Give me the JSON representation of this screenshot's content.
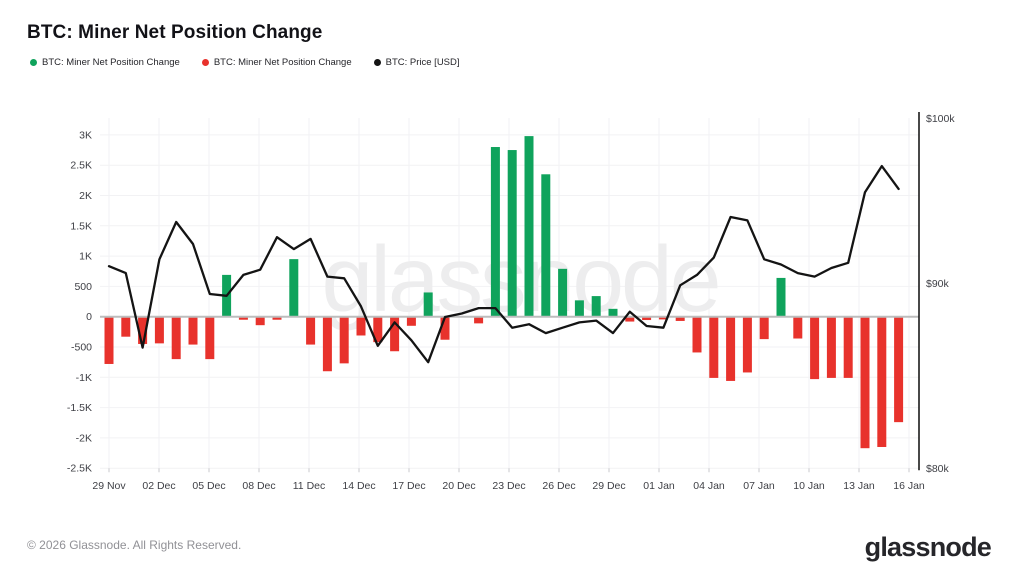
{
  "header": {
    "title": "BTC: Miner Net Position Change"
  },
  "legend": {
    "items": [
      {
        "label": "BTC: Miner Net Position Change",
        "color": "#0fa35c"
      },
      {
        "label": "BTC: Miner Net Position Change",
        "color": "#e8322c"
      },
      {
        "label": "BTC: Price [USD]",
        "color": "#141414"
      }
    ]
  },
  "footer": {
    "copyright": "© 2026 Glassnode. All Rights Reserved.",
    "brand": "glassnode"
  },
  "chart_data": {
    "type": "bar+line",
    "title": "BTC: Miner Net Position Change",
    "watermark": "glassnode",
    "grid": true,
    "legend_position": "top-left",
    "dates": [
      "29 Nov",
      "30 Nov",
      "01 Dec",
      "02 Dec",
      "03 Dec",
      "04 Dec",
      "05 Dec",
      "06 Dec",
      "07 Dec",
      "08 Dec",
      "09 Dec",
      "10 Dec",
      "11 Dec",
      "12 Dec",
      "13 Dec",
      "14 Dec",
      "15 Dec",
      "16 Dec",
      "17 Dec",
      "18 Dec",
      "19 Dec",
      "20 Dec",
      "21 Dec",
      "22 Dec",
      "23 Dec",
      "24 Dec",
      "25 Dec",
      "26 Dec",
      "27 Dec",
      "28 Dec",
      "29 Dec",
      "30 Dec",
      "31 Dec",
      "01 Jan",
      "02 Jan",
      "03 Jan",
      "04 Jan",
      "05 Jan",
      "06 Jan",
      "07 Jan",
      "08 Jan",
      "09 Jan",
      "10 Jan",
      "11 Jan",
      "12 Jan",
      "13 Jan",
      "14 Jan",
      "15 Jan"
    ],
    "series": [
      {
        "name": "BTC: Miner Net Position Change",
        "type": "bar",
        "axis": "left",
        "unit": "BTC",
        "values": [
          -780,
          -330,
          -450,
          -440,
          -700,
          -460,
          -700,
          690,
          -50,
          -140,
          -50,
          950,
          -460,
          -900,
          -770,
          -310,
          -420,
          -570,
          -150,
          400,
          -380,
          0,
          -110,
          2800,
          2750,
          2980,
          2350,
          790,
          270,
          340,
          130,
          -80,
          -55,
          -45,
          -70,
          -590,
          -1010,
          -1060,
          -920,
          -370,
          640,
          -360,
          -1030,
          -1010,
          -1010,
          -2170,
          -2150,
          -1740
        ]
      },
      {
        "name": "BTC: Price [USD]",
        "type": "line",
        "axis": "right",
        "unit": "USD",
        "values": [
          91000,
          90600,
          86400,
          91400,
          93600,
          92300,
          89400,
          89300,
          90500,
          90800,
          92700,
          92000,
          92600,
          90400,
          90300,
          88700,
          86500,
          87800,
          86800,
          85600,
          88100,
          88300,
          88600,
          88600,
          87500,
          87700,
          87200,
          87500,
          87800,
          87900,
          87200,
          88400,
          87600,
          87500,
          89900,
          90500,
          91500,
          93900,
          93700,
          91400,
          91100,
          90600,
          90400,
          90900,
          91200,
          95400,
          97000,
          95600
        ]
      }
    ],
    "left_axis": {
      "title": "",
      "ticks": [
        {
          "label": "3K",
          "value": 3000
        },
        {
          "label": "2.5K",
          "value": 2500
        },
        {
          "label": "2K",
          "value": 2000
        },
        {
          "label": "1.5K",
          "value": 1500
        },
        {
          "label": "1K",
          "value": 1000
        },
        {
          "label": "500",
          "value": 500
        },
        {
          "label": "0",
          "value": 0
        },
        {
          "label": "-500",
          "value": -500
        },
        {
          "label": "-1K",
          "value": -1000
        },
        {
          "label": "-1.5K",
          "value": -1500
        },
        {
          "label": "-2K",
          "value": -2000
        },
        {
          "label": "-2.5K",
          "value": -2500
        }
      ]
    },
    "right_axis": {
      "scale": "log",
      "ticks": [
        {
          "label": "$100k",
          "value": 100000
        },
        {
          "label": "$90k",
          "value": 90000
        },
        {
          "label": "$80k",
          "value": 80000
        }
      ]
    },
    "x_ticks": [
      "29 Nov",
      "02 Dec",
      "05 Dec",
      "08 Dec",
      "11 Dec",
      "14 Dec",
      "17 Dec",
      "20 Dec",
      "23 Dec",
      "26 Dec",
      "29 Dec",
      "01 Jan",
      "04 Jan",
      "07 Jan",
      "10 Jan",
      "13 Jan",
      "16 Jan"
    ],
    "colors": {
      "positive_bar": "#0fa35c",
      "negative_bar": "#e8322c",
      "price_line": "#141414",
      "zero_line": "#bdbdbd",
      "grid_line": "#f2f2f4",
      "axis_text": "#3f4046",
      "axis_line": "#1a1a1a",
      "watermark": "#ededee",
      "background": "#ffffff"
    }
  }
}
